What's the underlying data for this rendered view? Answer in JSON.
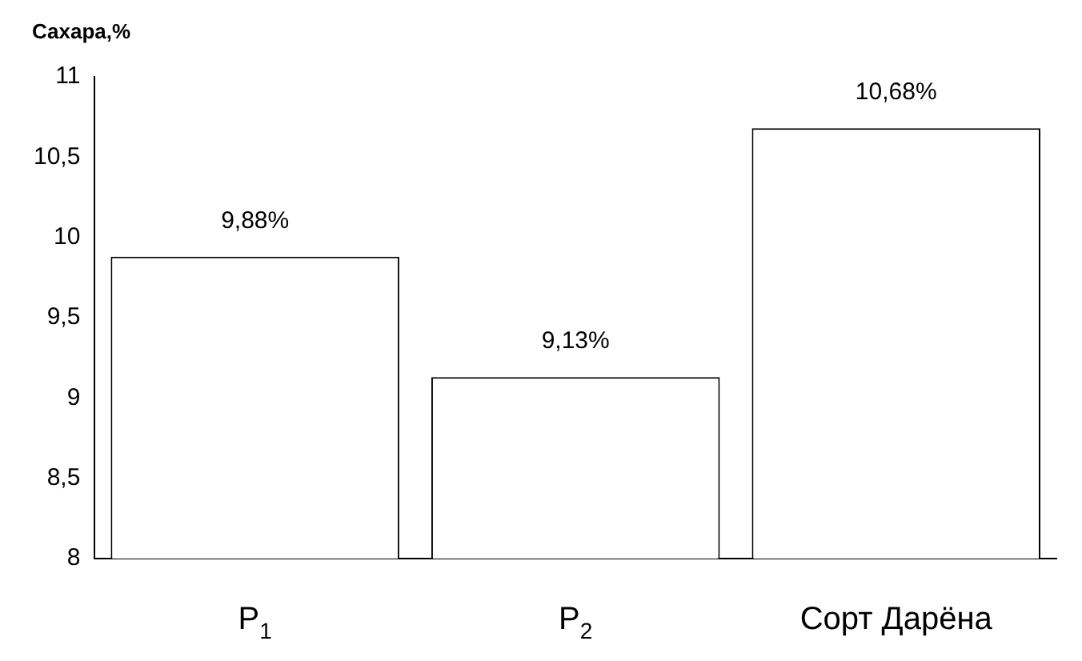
{
  "chart_data": {
    "type": "bar",
    "ylabel": "Сахара,%",
    "categories": [
      "P$_{1}$",
      "P$_{2}$",
      "Сорт Дарёна"
    ],
    "values": [
      9.88,
      9.13,
      10.68
    ],
    "colors": [
      "#ffffff",
      "#ffffff",
      "#ffffff"
    ],
    "value_labels": [
      "9,88%",
      "9,13%",
      "10,68%"
    ],
    "ylim": [
      8,
      11
    ],
    "yticks": [
      8,
      {
        "value": 8.5,
        "label": "8,5"
      },
      9,
      {
        "value": 9.5,
        "label": "9,5"
      },
      10,
      {
        "value": 10.5,
        "label": "10,5"
      },
      11
    ],
    "grid": false,
    "legend": false
  }
}
